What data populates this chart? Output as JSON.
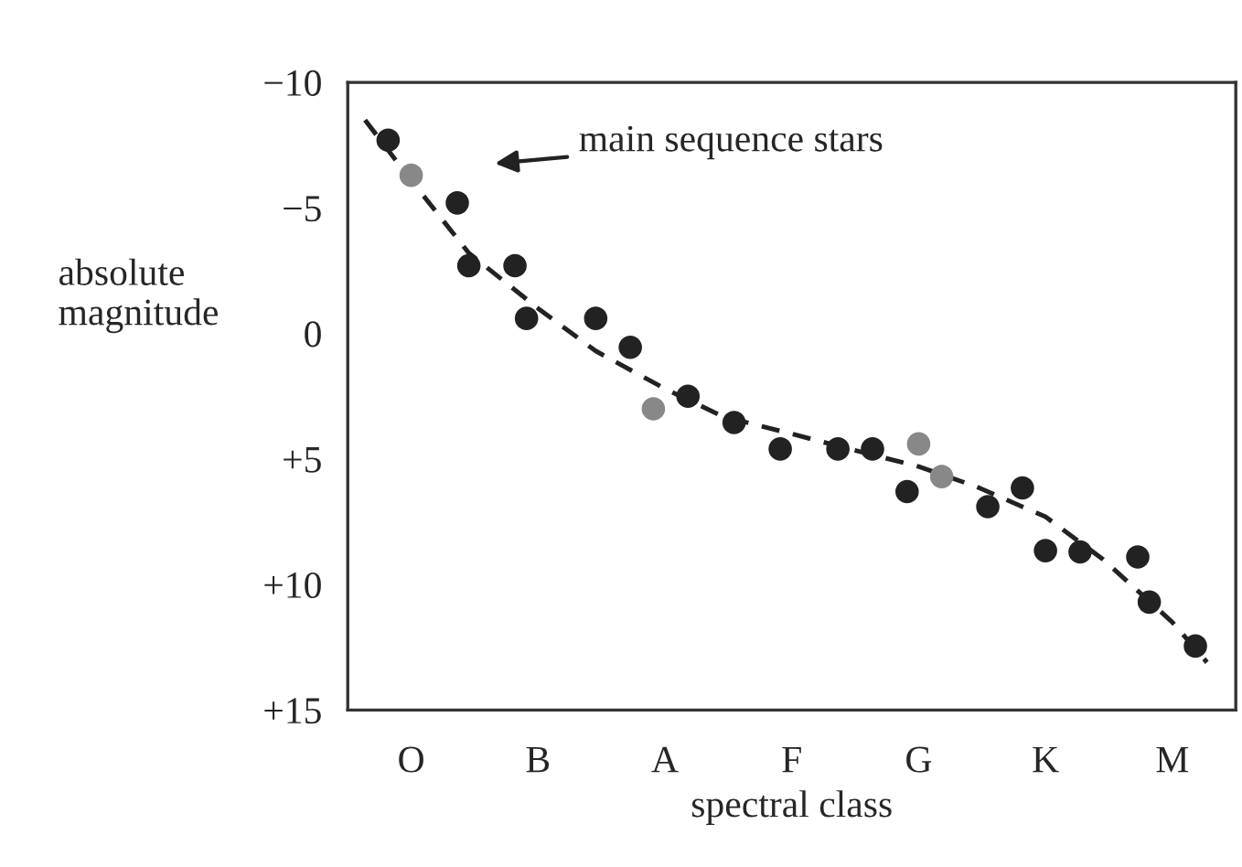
{
  "chart_data": {
    "type": "scatter",
    "xlabel": "spectral class",
    "ylabel": "absolute\nmagnitude",
    "categories": [
      null,
      null,
      null,
      null,
      null,
      "O",
      null,
      null,
      null,
      null,
      null,
      null,
      null,
      null,
      null,
      null,
      "B",
      null,
      null,
      null,
      null,
      null,
      null,
      null,
      null,
      null,
      null,
      "A",
      null,
      null,
      null,
      null,
      null,
      null,
      null,
      null,
      null,
      null,
      "F",
      null,
      null,
      null,
      null,
      null,
      null,
      null,
      null,
      null,
      null,
      "G",
      null,
      null,
      null,
      null,
      null,
      null,
      null,
      null,
      null,
      null,
      "K",
      null,
      null,
      null,
      null,
      null,
      null,
      null,
      null,
      null,
      null,
      "M",
      null,
      null,
      null,
      null,
      null
    ],
    "ylim": [
      15,
      -10
    ],
    "yticks": [
      {
        "value": -10,
        "label": "−10"
      },
      {
        "value": -5,
        "label": "−5"
      },
      0,
      {
        "value": 5,
        "label": "+5"
      },
      {
        "value": 10,
        "label": "+10"
      },
      {
        "value": 15,
        "label": "+15"
      }
    ],
    "grid": false,
    "legend": false,
    "marker": "circle",
    "series": [
      {
        "color": "#222222",
        "values": [
          null,
          null,
          null,
          -7.7,
          null,
          null,
          null,
          null,
          null,
          -5.2,
          -2.7,
          null,
          null,
          null,
          -2.7,
          -0.6,
          null,
          null,
          null,
          null,
          null,
          -0.6,
          null,
          null,
          0.55,
          null,
          null,
          null,
          null,
          2.5,
          null,
          null,
          null,
          3.55,
          null,
          null,
          null,
          4.6,
          null,
          null,
          null,
          null,
          4.6,
          null,
          null,
          4.6,
          null,
          null,
          6.3,
          null,
          null,
          null,
          null,
          null,
          null,
          6.9,
          null,
          null,
          6.15,
          null,
          8.65,
          null,
          null,
          8.7,
          null,
          null,
          null,
          null,
          8.9,
          10.7,
          null,
          null,
          null,
          12.45,
          null,
          null,
          null
        ]
      },
      {
        "color": "#888888",
        "values": [
          null,
          null,
          null,
          null,
          null,
          -6.3,
          null,
          null,
          null,
          null,
          null,
          null,
          null,
          null,
          null,
          null,
          null,
          null,
          null,
          null,
          null,
          null,
          null,
          null,
          null,
          null,
          3.0,
          null,
          null,
          null,
          null,
          null,
          null,
          null,
          null,
          null,
          null,
          null,
          null,
          null,
          null,
          null,
          null,
          null,
          null,
          null,
          null,
          null,
          null,
          4.4,
          null,
          5.7,
          null,
          null,
          null,
          null,
          null,
          null,
          null,
          null,
          null,
          null,
          null,
          null,
          null,
          null,
          null,
          null,
          null,
          null,
          null,
          null,
          null,
          null,
          null,
          null,
          null
        ]
      },
      {
        "type": "line",
        "color": "#222222",
        "line_style": "dashed",
        "marker": "none",
        "values": [
          null,
          -8.5,
          null,
          null,
          null,
          -6.1,
          null,
          null,
          null,
          null,
          -3.2,
          null,
          null,
          null,
          null,
          null,
          -1.0,
          null,
          null,
          null,
          null,
          0.7,
          null,
          null,
          null,
          null,
          null,
          2.2,
          null,
          null,
          null,
          null,
          3.3,
          null,
          null,
          null,
          null,
          null,
          4.0,
          null,
          null,
          null,
          null,
          4.6,
          null,
          null,
          null,
          null,
          null,
          5.3,
          null,
          null,
          null,
          null,
          6.1,
          null,
          null,
          null,
          null,
          null,
          7.3,
          null,
          null,
          null,
          null,
          9.0,
          null,
          null,
          null,
          null,
          null,
          11.5,
          null,
          null,
          13.1,
          null,
          null
        ]
      }
    ],
    "annotations": [
      "main sequence stars"
    ]
  }
}
